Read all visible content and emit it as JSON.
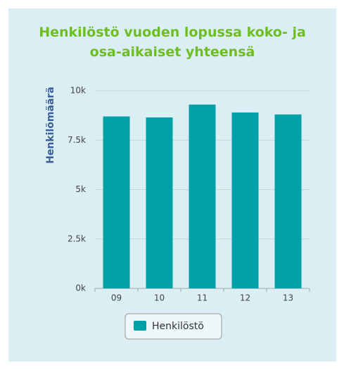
{
  "chart_data": {
    "type": "bar",
    "title": "Henkilöstö vuoden lopussa koko- ja osa-aikaiset yhteensä",
    "y_label": "Henkilömäärä",
    "categories": [
      "09",
      "10",
      "11",
      "12",
      "13"
    ],
    "series": [
      {
        "name": "Henkilöstö",
        "color": "#00a0a8",
        "values": [
          8700,
          8650,
          9300,
          8900,
          8800
        ]
      }
    ],
    "ylim": [
      0,
      10000
    ],
    "yticks": [
      {
        "value": 0,
        "label": "0k"
      },
      {
        "value": 2500,
        "label": "2.5k"
      },
      {
        "value": 5000,
        "label": "5k"
      },
      {
        "value": 7500,
        "label": "7.5k"
      },
      {
        "value": 10000,
        "label": "10k"
      }
    ],
    "grid": true,
    "legend": "bottom"
  }
}
